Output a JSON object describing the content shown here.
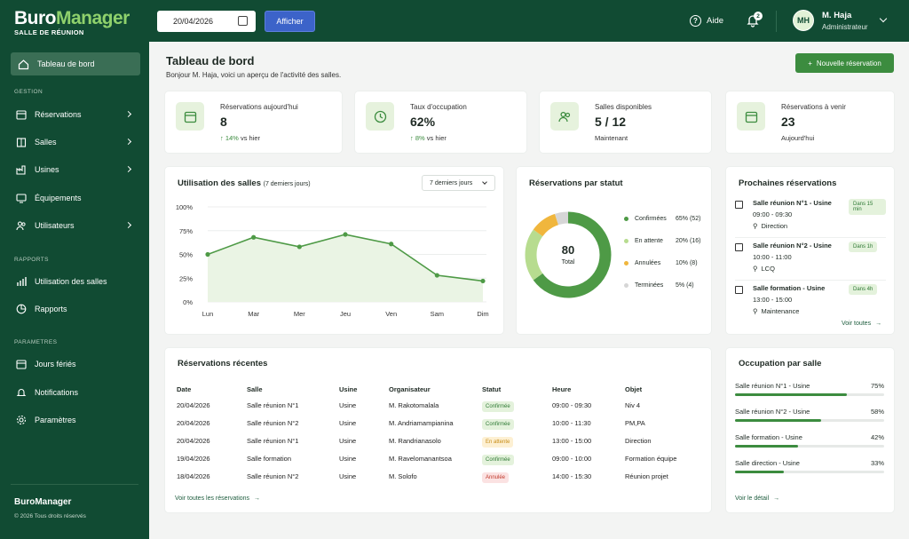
{
  "header": {
    "brand_main": "Buro",
    "brand_accent": "Manager",
    "brand_sub": "SALLE DE RÉUNION",
    "date_value": "20/04/2026",
    "afficher": "Afficher",
    "aide": "Aide",
    "notif_count": "2",
    "user_initials": "MH",
    "user_name": "M. Haja",
    "user_role": "Administrateur"
  },
  "sidebar": {
    "active": "Tableau de bord",
    "sec_gestion": "GESTION",
    "sec_rapports": "RAPPORTS",
    "sec_parametres": "PARAMETRES",
    "items": {
      "reservations": "Réservations",
      "salles": "Salles",
      "usines": "Usines",
      "equipements": "Équipements",
      "utilisateurs": "Utilisateurs",
      "utilisation": "Utilisation des salles",
      "rapports": "Rapports",
      "jours": "Jours fériés",
      "notifications": "Notifications",
      "parametres": "Paramètres"
    },
    "foot_brand": "BuroManager",
    "foot_copy": "© 2026 Tous droits réservés"
  },
  "page": {
    "title": "Tableau de bord",
    "subtitle": "Bonjour M. Haja, voici un aperçu de l'activité des salles.",
    "new_button": "Nouvelle réservation"
  },
  "kpis": [
    {
      "label": "Réservations aujourd'hui",
      "value": "8",
      "delta": "14%",
      "foot": "vs hier"
    },
    {
      "label": "Taux d'occupation",
      "value": "62%",
      "delta": "8%",
      "foot": "vs hier"
    },
    {
      "label": "Salles disponibles",
      "value": "5 / 12",
      "foot": "Maintenant"
    },
    {
      "label": "Réservations à venir",
      "value": "23",
      "foot": "Aujourd'hui"
    }
  ],
  "usage": {
    "title": "Utilisation des salles",
    "subtitle": "(7 derniers jours)",
    "select": "7 derniers jours"
  },
  "chart_data": [
    {
      "type": "area",
      "categories": [
        "Lun",
        "Mar",
        "Mer",
        "Jeu",
        "Ven",
        "Sam",
        "Dim"
      ],
      "values": [
        50,
        68,
        58,
        71,
        61,
        28,
        22
      ],
      "yticks": [
        "100%",
        "75%",
        "50%",
        "25%",
        "0%"
      ],
      "ylim": [
        0,
        100
      ],
      "color": "#4e9a46"
    },
    {
      "type": "pie",
      "title": "Réservations par statut",
      "center_value": "80",
      "center_label": "Total",
      "slices": [
        {
          "name": "Confirmées",
          "pct": "65%",
          "count": "(52)",
          "value": 52,
          "color": "#4e9a46"
        },
        {
          "name": "En attente",
          "pct": "20%",
          "count": "(16)",
          "value": 16,
          "color": "#b7dc8f"
        },
        {
          "name": "Annulées",
          "pct": "10%",
          "count": "(8)",
          "value": 8,
          "color": "#f0b63d"
        },
        {
          "name": "Terminées",
          "pct": "5%",
          "count": "(4)",
          "value": 4,
          "color": "#d6d6d6"
        }
      ]
    }
  ],
  "upcoming": {
    "title": "Prochaines réservations",
    "events": [
      {
        "title": "Salle réunion N°1 - Usine",
        "hours": "09:00 - 09:30",
        "dept": "Direction",
        "pill": "Dans 15 min"
      },
      {
        "title": "Salle réunion N°2 - Usine",
        "hours": "10:00 - 11:00",
        "dept": "LCQ",
        "pill": "Dans 1h"
      },
      {
        "title": "Salle formation - Usine",
        "hours": "13:00 - 15:00",
        "dept": "Maintenance",
        "pill": "Dans 4h"
      }
    ],
    "link": "Voir toutes"
  },
  "recent": {
    "title": "Réservations récentes",
    "headers": [
      "Date",
      "Salle",
      "Usine",
      "Organisateur",
      "Statut",
      "Heure",
      "Objet"
    ],
    "rows": [
      [
        "20/04/2026",
        "Salle réunion N°1",
        "Usine",
        "M. Rakotomalala",
        "Confirmée",
        "09:00 - 09:30",
        "Niv 4"
      ],
      [
        "20/04/2026",
        "Salle réunion N°2",
        "Usine",
        "M. Andriamampianina",
        "Confirmée",
        "10:00 - 11:30",
        "PM,PA"
      ],
      [
        "20/04/2026",
        "Salle réunion N°1",
        "Usine",
        "M. Randrianasolo",
        "En attente",
        "13:00 - 15:00",
        "Direction"
      ],
      [
        "19/04/2026",
        "Salle formation",
        "Usine",
        "M. Ravelomanantsoa",
        "Confirmée",
        "09:00 - 10:00",
        "Formation équipe"
      ],
      [
        "18/04/2026",
        "Salle réunion N°2",
        "Usine",
        "M. Solofo",
        "Annulée",
        "14:00 - 15:30",
        "Réunion projet"
      ]
    ],
    "link": "Voir toutes les réservations"
  },
  "occupancy": {
    "title": "Occupation par salle",
    "rooms": [
      {
        "name": "Salle réunion N°1 - Usine",
        "pct": "75%",
        "value": 75
      },
      {
        "name": "Salle réunion N°2 - Usine",
        "pct": "58%",
        "value": 58
      },
      {
        "name": "Salle formation - Usine",
        "pct": "42%",
        "value": 42
      },
      {
        "name": "Salle direction - Usine",
        "pct": "33%",
        "value": 33
      }
    ],
    "link": "Voir le détail"
  }
}
